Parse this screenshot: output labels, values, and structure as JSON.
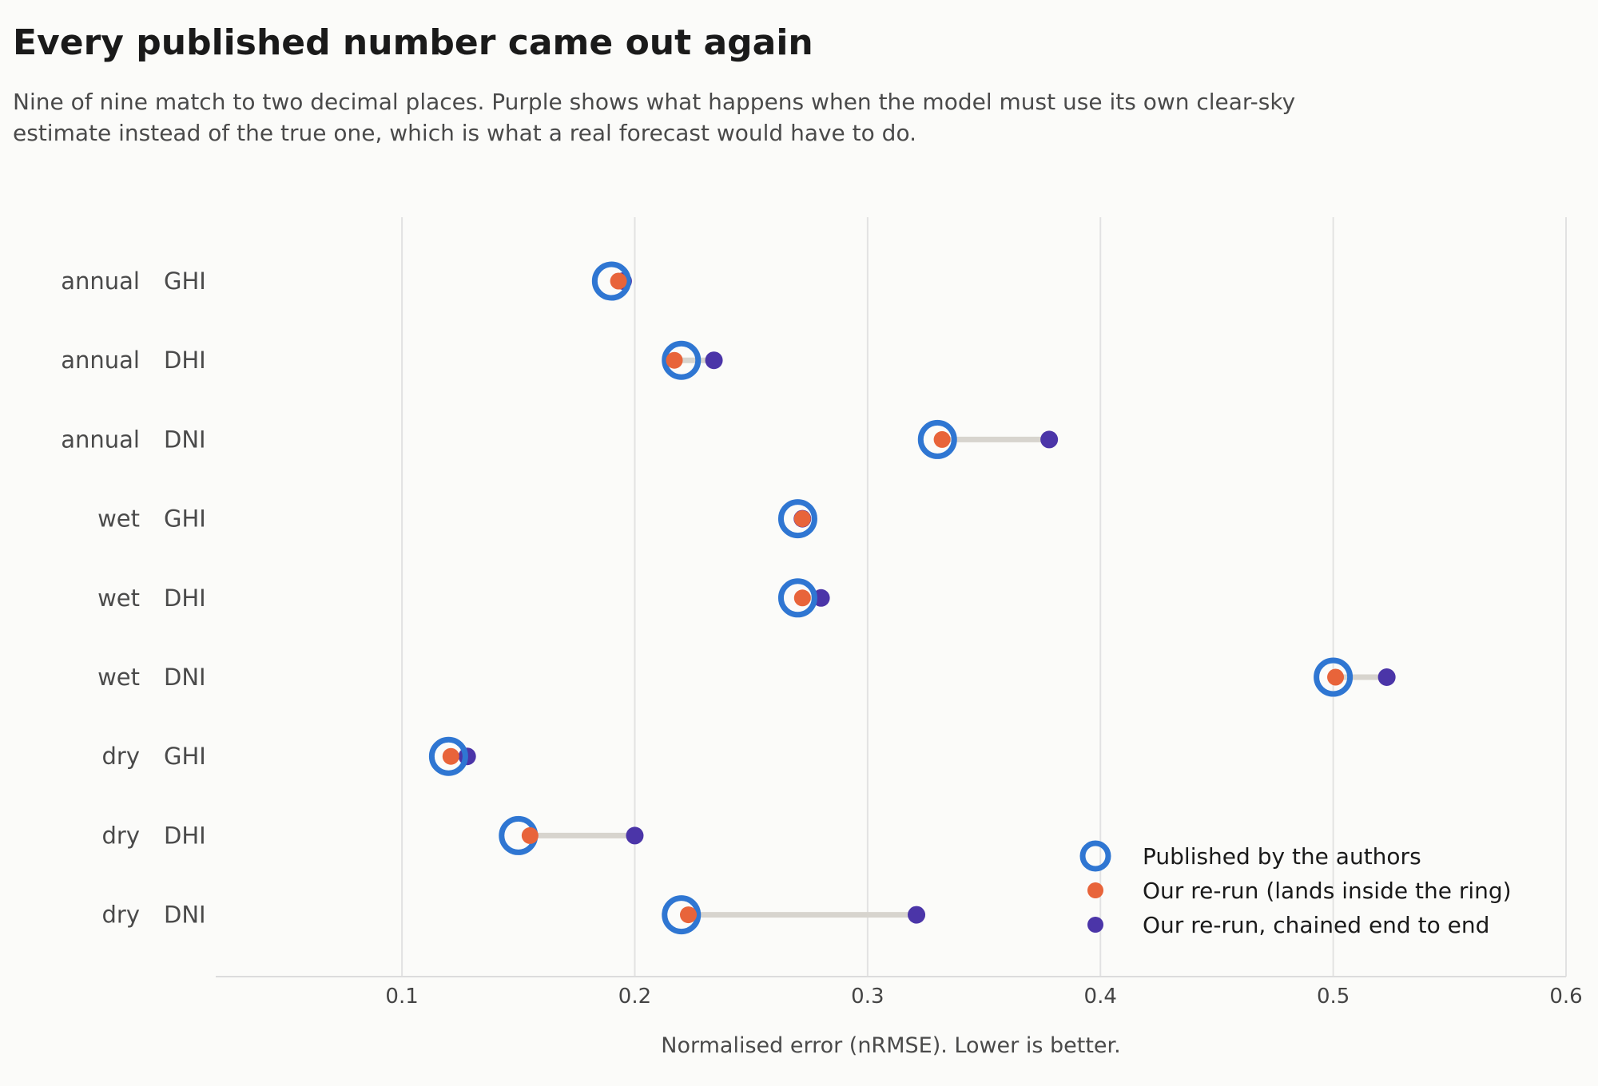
{
  "title": "Every published number came out again",
  "subtitle": "Nine of nine match to two decimal places. Purple shows what happens when the model must use its own clear-sky estimate instead of the true one, which is what a real forecast would have to do.",
  "colors": {
    "published": "#2f76d2",
    "rerun": "#e8643a",
    "chained": "#4b35a8",
    "connector": "#d7d4ce",
    "grid": "#e2e2e2",
    "background": "#fbfbf9"
  },
  "chart_data": {
    "type": "scatter",
    "title": "Every published number came out again",
    "subtitle": "Nine of nine match to two decimal places. Purple shows what happens when the model must use its own clear-sky estimate instead of the true one, which is what a real forecast would have to do.",
    "xlabel": "Normalised error (nRMSE). Lower is better.",
    "ylabel": "",
    "xlim": [
      0.02,
      0.6
    ],
    "xticks": [
      0.1,
      0.2,
      0.3,
      0.4,
      0.5,
      0.6
    ],
    "xtick_labels": [
      "0.1",
      "0.2",
      "0.3",
      "0.4",
      "0.5",
      "0.6"
    ],
    "grid": "vertical",
    "legend_position": "bottom-right",
    "categories": [
      {
        "season": "annual",
        "variable": "GHI"
      },
      {
        "season": "annual",
        "variable": "DHI"
      },
      {
        "season": "annual",
        "variable": "DNI"
      },
      {
        "season": "wet",
        "variable": "GHI"
      },
      {
        "season": "wet",
        "variable": "DHI"
      },
      {
        "season": "wet",
        "variable": "DNI"
      },
      {
        "season": "dry",
        "variable": "GHI"
      },
      {
        "season": "dry",
        "variable": "DHI"
      },
      {
        "season": "dry",
        "variable": "DNI"
      }
    ],
    "series": [
      {
        "name": "Published by the authors",
        "marker": "ring",
        "values": [
          0.19,
          0.22,
          0.33,
          0.27,
          0.27,
          0.5,
          0.12,
          0.15,
          0.22
        ]
      },
      {
        "name": "Our re-run (lands inside the ring)",
        "marker": "dot",
        "values": [
          0.193,
          0.217,
          0.332,
          0.272,
          0.272,
          0.501,
          0.121,
          0.155,
          0.223
        ]
      },
      {
        "name": "Our re-run, chained end to end",
        "marker": "dot",
        "values": [
          0.195,
          0.234,
          0.378,
          0.272,
          0.28,
          0.523,
          0.128,
          0.2,
          0.321
        ]
      }
    ]
  }
}
